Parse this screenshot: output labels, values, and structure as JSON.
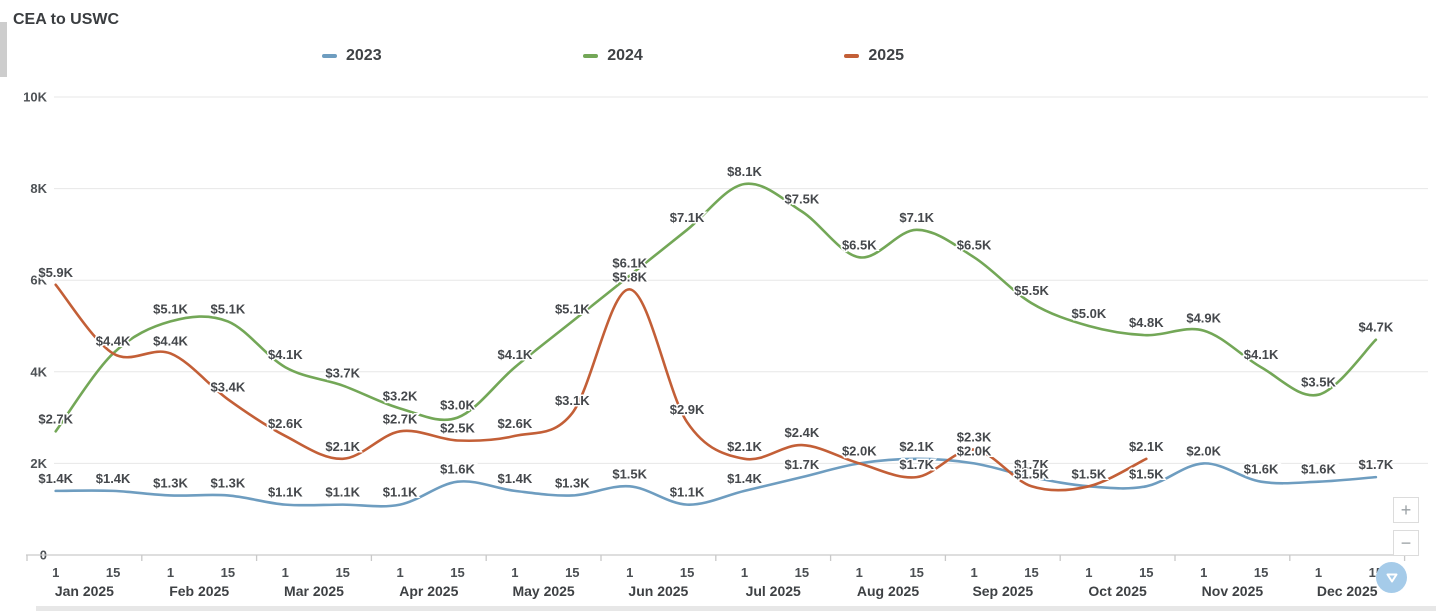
{
  "title": "CEA to USWC",
  "chart_data": {
    "type": "line",
    "title": "CEA to USWC",
    "unit": "USD (thousands)",
    "label_format": "$#.#K",
    "grid": "horizontal",
    "legend_position": "top",
    "ylim": [
      0,
      10
    ],
    "y_ticks": [
      {
        "label": "0",
        "value": 0
      },
      {
        "label": "2K",
        "value": 2
      },
      {
        "label": "4K",
        "value": 4
      },
      {
        "label": "6K",
        "value": 6
      },
      {
        "label": "8K",
        "value": 8
      },
      {
        "label": "10K",
        "value": 10
      }
    ],
    "x_tick_days": [
      "1",
      "15"
    ],
    "months": [
      "Jan 2025",
      "Feb 2025",
      "Mar 2025",
      "Apr 2025",
      "May 2025",
      "Jun 2025",
      "Jul 2025",
      "Aug 2025",
      "Sep 2025",
      "Oct 2025",
      "Nov 2025",
      "Dec 2025"
    ],
    "categories": [
      "Jan 1",
      "Jan 15",
      "Feb 1",
      "Feb 15",
      "Mar 1",
      "Mar 15",
      "Apr 1",
      "Apr 15",
      "May 1",
      "May 15",
      "Jun 1",
      "Jun 15",
      "Jul 1",
      "Jul 15",
      "Aug 1",
      "Aug 15",
      "Sep 1",
      "Sep 15",
      "Oct 1",
      "Oct 15",
      "Nov 1",
      "Nov 15",
      "Dec 1",
      "Dec 15"
    ],
    "series": [
      {
        "name": "2023",
        "color": "#6e9dc0",
        "values": [
          1.4,
          1.4,
          1.3,
          1.3,
          1.1,
          1.1,
          1.1,
          1.6,
          1.4,
          1.3,
          1.5,
          1.1,
          1.4,
          1.7,
          2.0,
          2.1,
          2.0,
          1.7,
          1.5,
          1.5,
          2.0,
          1.6,
          1.6,
          1.7
        ],
        "labels": [
          "$1.4K",
          "$1.4K",
          "$1.3K",
          "$1.3K",
          "$1.1K",
          "$1.1K",
          "$1.1K",
          "$1.6K",
          "$1.4K",
          "$1.3K",
          "$1.5K",
          "$1.1K",
          "$1.4K",
          "$1.7K",
          "$2.0K",
          "$2.1K",
          "$2.0K",
          "$1.7K",
          "$1.5K",
          "$1.5K",
          "$2.0K",
          "$1.6K",
          "$1.6K",
          "$1.7K"
        ]
      },
      {
        "name": "2024",
        "color": "#73a757",
        "values": [
          2.7,
          4.4,
          5.1,
          5.1,
          4.1,
          3.7,
          3.2,
          3.0,
          4.1,
          5.1,
          6.1,
          7.1,
          8.1,
          7.5,
          6.5,
          7.1,
          6.5,
          5.5,
          5.0,
          4.8,
          4.9,
          4.1,
          3.5,
          4.7
        ],
        "labels": [
          "$2.7K",
          "$4.4K",
          "$5.1K",
          "$5.1K",
          "$4.1K",
          "$3.7K",
          "$3.2K",
          "$3.0K",
          "$4.1K",
          "$5.1K",
          "$6.1K",
          "$7.1K",
          "$8.1K",
          "$7.5K",
          "$6.5K",
          "$7.1K",
          "$6.5K",
          "$5.5K",
          "$5.0K",
          "$4.8K",
          "$4.9K",
          "$4.1K",
          "$3.5K",
          "$4.7K"
        ]
      },
      {
        "name": "2025",
        "color": "#c35f37",
        "values": [
          5.9,
          4.4,
          4.4,
          3.4,
          2.6,
          2.1,
          2.7,
          2.5,
          2.6,
          3.1,
          5.8,
          2.9,
          2.1,
          2.4,
          2.0,
          1.7,
          2.3,
          1.5,
          1.5,
          2.1
        ],
        "labels": [
          "$5.9K",
          "$4.4K",
          "$4.4K",
          "$3.4K",
          "$2.6K",
          "$2.1K",
          "$2.7K",
          "$2.5K",
          "$2.6K",
          "$3.1K",
          "$5.8K",
          "$2.9K",
          "$2.1K",
          "$2.4K",
          "$2.0K",
          "$1.7K",
          "$2.3K",
          "$1.5K",
          "$1.5K",
          "$2.1K"
        ]
      }
    ]
  },
  "controls": {
    "zoom_in": "+",
    "zoom_out": "−"
  }
}
